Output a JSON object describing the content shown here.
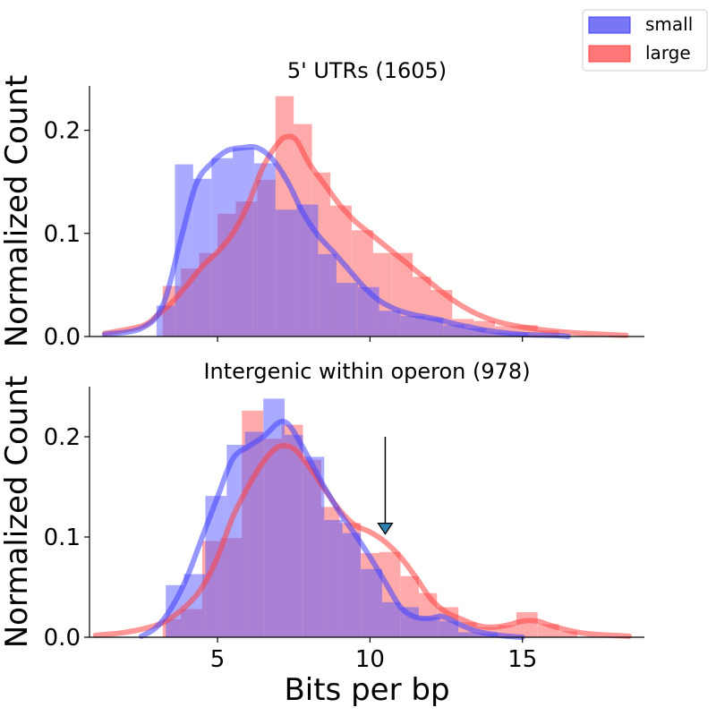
{
  "legend": {
    "position": "top-right",
    "items": [
      {
        "label": "small",
        "color": "#7777f5"
      },
      {
        "label": "large",
        "color": "#ff7777"
      }
    ]
  },
  "colors": {
    "small_bar": "#5555ff",
    "large_bar": "#ff5555",
    "small_line": "#4040ff",
    "large_line": "#ff4040",
    "arrow_head": "#2f7fb0"
  },
  "chart_data": [
    {
      "type": "bar",
      "title": "5' UTRs (1605)",
      "xlabel": "",
      "ylabel": "Normalized Count",
      "xlim": [
        0.8,
        19.0
      ],
      "ylim": [
        0.0,
        0.243
      ],
      "yticks": [
        0.0,
        0.1,
        0.2
      ],
      "ytick_labels": [
        "0.0",
        "0.1",
        "0.2"
      ],
      "grid": false,
      "series": [
        {
          "name": "small",
          "bins": [
            [
              3.0,
              3.6,
              0.03
            ],
            [
              3.6,
              4.2,
              0.167
            ],
            [
              4.2,
              4.8,
              0.153
            ],
            [
              4.8,
              5.5,
              0.173
            ],
            [
              5.5,
              6.2,
              0.183
            ],
            [
              6.2,
              6.9,
              0.168
            ],
            [
              6.9,
              7.6,
              0.123
            ],
            [
              7.6,
              8.3,
              0.128
            ],
            [
              8.3,
              8.9,
              0.08
            ],
            [
              8.9,
              9.6,
              0.052
            ],
            [
              9.6,
              10.3,
              0.048
            ],
            [
              10.3,
              11.0,
              0.025
            ],
            [
              11.0,
              11.8,
              0.02
            ],
            [
              11.8,
              12.4,
              0.018
            ],
            [
              12.4,
              13.1,
              0.011
            ],
            [
              13.1,
              13.8,
              0.008
            ],
            [
              13.8,
              14.5,
              0.004
            ],
            [
              14.5,
              15.2,
              0.004
            ]
          ]
        },
        {
          "name": "large",
          "bins": [
            [
              3.2,
              3.8,
              0.049
            ],
            [
              3.8,
              4.4,
              0.066
            ],
            [
              4.4,
              5.0,
              0.081
            ],
            [
              5.0,
              5.6,
              0.119
            ],
            [
              5.6,
              6.3,
              0.131
            ],
            [
              6.3,
              6.9,
              0.152
            ],
            [
              6.9,
              7.5,
              0.233
            ],
            [
              7.5,
              8.1,
              0.206
            ],
            [
              8.1,
              8.7,
              0.159
            ],
            [
              8.7,
              9.4,
              0.127
            ],
            [
              9.4,
              10.1,
              0.103
            ],
            [
              10.1,
              10.7,
              0.081
            ],
            [
              10.7,
              11.4,
              0.081
            ],
            [
              11.4,
              12.0,
              0.058
            ],
            [
              12.0,
              12.7,
              0.045
            ],
            [
              12.7,
              13.4,
              0.017
            ],
            [
              13.4,
              14.1,
              0.015
            ],
            [
              14.1,
              14.8,
              0.01
            ],
            [
              14.8,
              15.5,
              0.011
            ],
            [
              15.5,
              16.2,
              0.006
            ]
          ]
        }
      ],
      "kde": [
        {
          "name": "small",
          "x": [
            1.3,
            2.5,
            3.2,
            3.8,
            4.3,
            4.8,
            5.3,
            5.8,
            6.3,
            6.8,
            7.3,
            7.8,
            8.3,
            8.8,
            9.3,
            9.8,
            10.3,
            10.8,
            11.3,
            11.8,
            12.3,
            12.8,
            13.3,
            13.8,
            14.3,
            15.0,
            16.0,
            16.5
          ],
          "y": [
            0.002,
            0.008,
            0.03,
            0.095,
            0.148,
            0.168,
            0.18,
            0.183,
            0.183,
            0.172,
            0.15,
            0.12,
            0.098,
            0.082,
            0.065,
            0.048,
            0.035,
            0.027,
            0.022,
            0.019,
            0.016,
            0.012,
            0.009,
            0.006,
            0.004,
            0.002,
            0.001,
            0.0
          ]
        },
        {
          "name": "large",
          "x": [
            1.3,
            2.5,
            3.0,
            3.5,
            4.0,
            4.5,
            5.0,
            5.5,
            6.0,
            6.5,
            7.0,
            7.3,
            7.6,
            8.0,
            8.5,
            9.0,
            9.5,
            10.0,
            10.5,
            11.0,
            11.5,
            12.0,
            12.5,
            13.0,
            13.5,
            14.0,
            14.5,
            15.5,
            16.5,
            18.4
          ],
          "y": [
            0.003,
            0.01,
            0.02,
            0.033,
            0.05,
            0.068,
            0.082,
            0.1,
            0.128,
            0.165,
            0.188,
            0.194,
            0.19,
            0.168,
            0.148,
            0.128,
            0.112,
            0.1,
            0.088,
            0.076,
            0.064,
            0.052,
            0.04,
            0.03,
            0.022,
            0.016,
            0.012,
            0.007,
            0.004,
            0.001
          ]
        }
      ]
    },
    {
      "type": "bar",
      "title": "Intergenic within operon (978)",
      "xlabel": "Bits per bp",
      "ylabel": "Normalized Count",
      "xlim": [
        0.8,
        19.0
      ],
      "ylim": [
        0.0,
        0.25
      ],
      "xticks": [
        5,
        10,
        15
      ],
      "xtick_labels": [
        "5",
        "10",
        "15"
      ],
      "yticks": [
        0.0,
        0.1,
        0.2
      ],
      "ytick_labels": [
        "0.0",
        "0.1",
        "0.2"
      ],
      "grid": false,
      "annotation": {
        "type": "arrow",
        "x": 10.5,
        "y_start": 0.2,
        "y_end": 0.103
      },
      "series": [
        {
          "name": "small",
          "bins": [
            [
              3.3,
              3.9,
              0.052
            ],
            [
              3.9,
              4.6,
              0.063
            ],
            [
              4.6,
              5.3,
              0.141
            ],
            [
              5.3,
              5.9,
              0.192
            ],
            [
              5.9,
              6.5,
              0.205
            ],
            [
              6.5,
              7.2,
              0.238
            ],
            [
              7.2,
              7.8,
              0.202
            ],
            [
              7.8,
              8.5,
              0.18
            ],
            [
              8.5,
              9.1,
              0.117
            ],
            [
              9.1,
              9.7,
              0.104
            ],
            [
              9.7,
              10.4,
              0.068
            ],
            [
              10.4,
              11.0,
              0.035
            ],
            [
              11.0,
              11.6,
              0.03
            ],
            [
              11.6,
              12.3,
              0.02
            ],
            [
              12.3,
              12.9,
              0.016
            ],
            [
              12.9,
              13.5,
              0.005
            ],
            [
              13.5,
              14.2,
              0.004
            ]
          ]
        },
        {
          "name": "large",
          "bins": [
            [
              3.2,
              3.8,
              0.018
            ],
            [
              3.8,
              4.5,
              0.028
            ],
            [
              4.5,
              5.1,
              0.096
            ],
            [
              5.1,
              5.8,
              0.099
            ],
            [
              5.8,
              6.5,
              0.226
            ],
            [
              6.5,
              7.1,
              0.198
            ],
            [
              7.1,
              7.8,
              0.212
            ],
            [
              7.8,
              8.4,
              0.177
            ],
            [
              8.4,
              9.0,
              0.13
            ],
            [
              9.0,
              9.7,
              0.114
            ],
            [
              9.7,
              10.3,
              0.084
            ],
            [
              10.3,
              11.0,
              0.085
            ],
            [
              11.0,
              11.6,
              0.061
            ],
            [
              11.6,
              12.2,
              0.044
            ],
            [
              12.2,
              12.9,
              0.03
            ],
            [
              12.9,
              13.5,
              0.015
            ],
            [
              13.5,
              14.2,
              0.01
            ],
            [
              14.2,
              14.8,
              0.012
            ],
            [
              14.8,
              15.5,
              0.025
            ],
            [
              15.5,
              16.2,
              0.013
            ],
            [
              16.2,
              16.8,
              0.006
            ]
          ]
        }
      ],
      "kde": [
        {
          "name": "small",
          "x": [
            2.5,
            3.0,
            3.5,
            4.0,
            4.5,
            5.0,
            5.5,
            6.0,
            6.5,
            7.0,
            7.3,
            7.6,
            8.0,
            8.5,
            9.0,
            9.5,
            10.0,
            10.5,
            11.0,
            11.5,
            12.0,
            12.3,
            12.6,
            13.0,
            13.5,
            14.0,
            14.5,
            15.0
          ],
          "y": [
            0.001,
            0.01,
            0.03,
            0.06,
            0.1,
            0.14,
            0.178,
            0.19,
            0.2,
            0.214,
            0.213,
            0.2,
            0.178,
            0.15,
            0.125,
            0.103,
            0.08,
            0.055,
            0.03,
            0.02,
            0.019,
            0.021,
            0.018,
            0.012,
            0.006,
            0.003,
            0.001,
            0.0
          ]
        },
        {
          "name": "large",
          "x": [
            1.0,
            2.0,
            3.0,
            3.5,
            4.0,
            4.5,
            5.0,
            5.5,
            6.0,
            6.5,
            7.0,
            7.5,
            8.0,
            8.5,
            9.0,
            9.5,
            10.0,
            10.5,
            11.0,
            11.5,
            12.0,
            12.5,
            13.0,
            13.5,
            14.0,
            14.5,
            15.0,
            15.5,
            16.0,
            17.0,
            18.5
          ],
          "y": [
            0.002,
            0.005,
            0.012,
            0.02,
            0.032,
            0.05,
            0.08,
            0.12,
            0.15,
            0.175,
            0.19,
            0.188,
            0.17,
            0.148,
            0.127,
            0.112,
            0.105,
            0.095,
            0.08,
            0.06,
            0.038,
            0.025,
            0.018,
            0.012,
            0.01,
            0.012,
            0.016,
            0.016,
            0.011,
            0.004,
            0.001
          ]
        }
      ]
    }
  ]
}
